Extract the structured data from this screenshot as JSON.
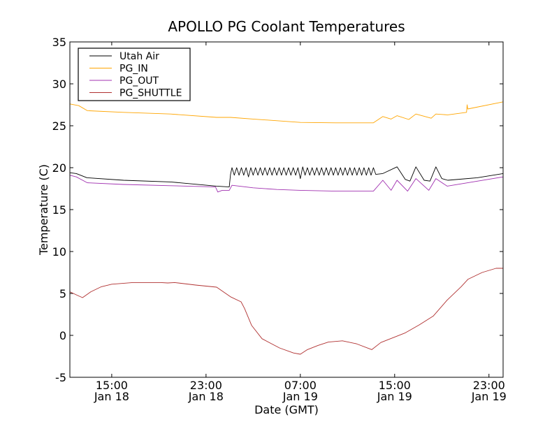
{
  "chart_data": {
    "type": "line",
    "title": "APOLLO PG Coolant Temperatures",
    "xlabel": "Date (GMT)",
    "ylabel": "Temperature (C)",
    "x_units": "hours since Jan 18 00:00 GMT",
    "xlim": [
      11.45,
      48.2
    ],
    "ylim": [
      -5,
      35
    ],
    "grid": false,
    "legend_position": "top-left",
    "yticks": [
      -5,
      0,
      5,
      10,
      15,
      20,
      25,
      30,
      35
    ],
    "ytick_labels": [
      "-5",
      "0",
      "5",
      "10",
      "15",
      "20",
      "25",
      "30",
      "35"
    ],
    "xticks": [
      {
        "value": 15,
        "time": "15:00",
        "date": "Jan 18"
      },
      {
        "value": 23,
        "time": "23:00",
        "date": "Jan 18"
      },
      {
        "value": 31,
        "time": "07:00",
        "date": "Jan 19"
      },
      {
        "value": 39,
        "time": "15:00",
        "date": "Jan 19"
      },
      {
        "value": 47,
        "time": "23:00",
        "date": "Jan 19"
      }
    ],
    "series": [
      {
        "name": "Utah Air",
        "color": "#000000",
        "points": [
          [
            11.45,
            19.4
          ],
          [
            12.0,
            19.3
          ],
          [
            12.9,
            18.8
          ],
          [
            16,
            18.5
          ],
          [
            20,
            18.3
          ],
          [
            23.9,
            17.8
          ],
          [
            24.97,
            17.7
          ],
          [
            25.08,
            19.2
          ],
          [
            25.2,
            20.0
          ],
          [
            25.4,
            19.1
          ],
          [
            25.6,
            20.0
          ],
          [
            25.8,
            19.1
          ],
          [
            26.0,
            20.0
          ],
          [
            26.2,
            19.1
          ],
          [
            26.4,
            20.0
          ],
          [
            26.6,
            18.9
          ],
          [
            26.8,
            20.0
          ],
          [
            27.0,
            19.1
          ],
          [
            27.2,
            20.0
          ],
          [
            27.4,
            19.1
          ],
          [
            27.6,
            20.0
          ],
          [
            27.8,
            19.1
          ],
          [
            28.0,
            20.0
          ],
          [
            28.2,
            19.1
          ],
          [
            28.4,
            20.0
          ],
          [
            28.6,
            19.1
          ],
          [
            28.8,
            20.0
          ],
          [
            29.0,
            19.1
          ],
          [
            29.2,
            20.0
          ],
          [
            29.4,
            19.1
          ],
          [
            29.6,
            20.0
          ],
          [
            29.8,
            19.1
          ],
          [
            30.0,
            20.0
          ],
          [
            30.2,
            19.1
          ],
          [
            30.4,
            20.0
          ],
          [
            30.6,
            19.1
          ],
          [
            30.8,
            20.0
          ],
          [
            31.0,
            18.7
          ],
          [
            31.2,
            20.1
          ],
          [
            31.4,
            19.1
          ],
          [
            31.6,
            20.0
          ],
          [
            31.8,
            19.1
          ],
          [
            32.0,
            20.0
          ],
          [
            32.2,
            19.1
          ],
          [
            32.4,
            20.0
          ],
          [
            32.6,
            19.1
          ],
          [
            32.8,
            20.0
          ],
          [
            33.0,
            19.1
          ],
          [
            33.2,
            20.0
          ],
          [
            33.4,
            19.1
          ],
          [
            33.6,
            20.0
          ],
          [
            33.8,
            19.1
          ],
          [
            34.0,
            20.0
          ],
          [
            34.2,
            19.1
          ],
          [
            34.4,
            20.0
          ],
          [
            34.6,
            19.1
          ],
          [
            34.8,
            20.0
          ],
          [
            35.0,
            19.1
          ],
          [
            35.2,
            20.0
          ],
          [
            35.4,
            19.1
          ],
          [
            35.6,
            20.0
          ],
          [
            35.8,
            19.1
          ],
          [
            36.0,
            20.0
          ],
          [
            36.2,
            19.1
          ],
          [
            36.4,
            20.0
          ],
          [
            36.6,
            19.1
          ],
          [
            36.8,
            20.0
          ],
          [
            37.0,
            19.1
          ],
          [
            37.2,
            20.0
          ],
          [
            37.4,
            19.2
          ],
          [
            38.0,
            19.3
          ],
          [
            39.2,
            20.1
          ],
          [
            39.9,
            18.6
          ],
          [
            40.3,
            18.4
          ],
          [
            40.8,
            20.1
          ],
          [
            41.5,
            18.5
          ],
          [
            42.0,
            18.4
          ],
          [
            42.5,
            20.1
          ],
          [
            43.0,
            18.7
          ],
          [
            43.5,
            18.5
          ],
          [
            46,
            18.8
          ],
          [
            48.2,
            19.3
          ]
        ]
      },
      {
        "name": "PG_IN",
        "color": "#ffa500",
        "points": [
          [
            11.45,
            27.6
          ],
          [
            12.2,
            27.4
          ],
          [
            12.93,
            26.8
          ],
          [
            16,
            26.6
          ],
          [
            20,
            26.4
          ],
          [
            23.9,
            26.0
          ],
          [
            25.08,
            26.0
          ],
          [
            27,
            25.8
          ],
          [
            31,
            25.4
          ],
          [
            34,
            25.35
          ],
          [
            37.2,
            25.35
          ],
          [
            38.0,
            26.1
          ],
          [
            38.7,
            25.8
          ],
          [
            39.2,
            26.2
          ],
          [
            40.2,
            25.75
          ],
          [
            40.8,
            26.4
          ],
          [
            42.1,
            25.9
          ],
          [
            42.5,
            26.4
          ],
          [
            43.5,
            26.3
          ],
          [
            45.1,
            26.6
          ],
          [
            45.15,
            27.5
          ],
          [
            45.2,
            27.0
          ],
          [
            48.2,
            27.85
          ]
        ]
      },
      {
        "name": "PG_OUT",
        "color": "#a030b0",
        "points": [
          [
            11.45,
            19.1
          ],
          [
            12.0,
            18.9
          ],
          [
            12.93,
            18.2
          ],
          [
            16,
            18.0
          ],
          [
            20,
            17.85
          ],
          [
            23.8,
            17.7
          ],
          [
            24.0,
            17.1
          ],
          [
            24.37,
            17.3
          ],
          [
            24.97,
            17.3
          ],
          [
            25.2,
            17.9
          ],
          [
            27,
            17.6
          ],
          [
            29,
            17.4
          ],
          [
            31,
            17.3
          ],
          [
            34,
            17.2
          ],
          [
            37.2,
            17.2
          ],
          [
            38.0,
            18.5
          ],
          [
            38.7,
            17.3
          ],
          [
            39.2,
            18.5
          ],
          [
            40.1,
            17.2
          ],
          [
            40.8,
            18.7
          ],
          [
            41.9,
            17.3
          ],
          [
            42.5,
            18.7
          ],
          [
            43.45,
            17.8
          ],
          [
            48.2,
            18.9
          ]
        ]
      },
      {
        "name": "PG_SHUTTLE",
        "color": "#b03030",
        "points": [
          [
            11.45,
            5.2
          ],
          [
            12.04,
            4.8
          ],
          [
            12.52,
            4.5
          ],
          [
            13.23,
            5.2
          ],
          [
            14.12,
            5.8
          ],
          [
            15.0,
            6.1
          ],
          [
            16.78,
            6.3
          ],
          [
            19.16,
            6.3
          ],
          [
            19.75,
            6.25
          ],
          [
            20.34,
            6.3
          ],
          [
            22.12,
            6.0
          ],
          [
            23.9,
            5.75
          ],
          [
            25.08,
            4.6
          ],
          [
            25.97,
            4.0
          ],
          [
            26.27,
            3.2
          ],
          [
            26.86,
            1.2
          ],
          [
            27.75,
            -0.4
          ],
          [
            29.23,
            -1.5
          ],
          [
            30.42,
            -2.1
          ],
          [
            31.0,
            -2.25
          ],
          [
            31.6,
            -1.7
          ],
          [
            32.5,
            -1.2
          ],
          [
            33.38,
            -0.8
          ],
          [
            34.57,
            -0.65
          ],
          [
            35.75,
            -1.0
          ],
          [
            37.06,
            -1.7
          ],
          [
            37.83,
            -0.85
          ],
          [
            39.0,
            -0.2
          ],
          [
            39.9,
            0.3
          ],
          [
            41.09,
            1.25
          ],
          [
            42.27,
            2.3
          ],
          [
            43.45,
            4.2
          ],
          [
            44.64,
            5.8
          ],
          [
            45.23,
            6.7
          ],
          [
            46.42,
            7.5
          ],
          [
            47.6,
            8.0
          ],
          [
            48.2,
            8.0
          ]
        ]
      }
    ]
  }
}
